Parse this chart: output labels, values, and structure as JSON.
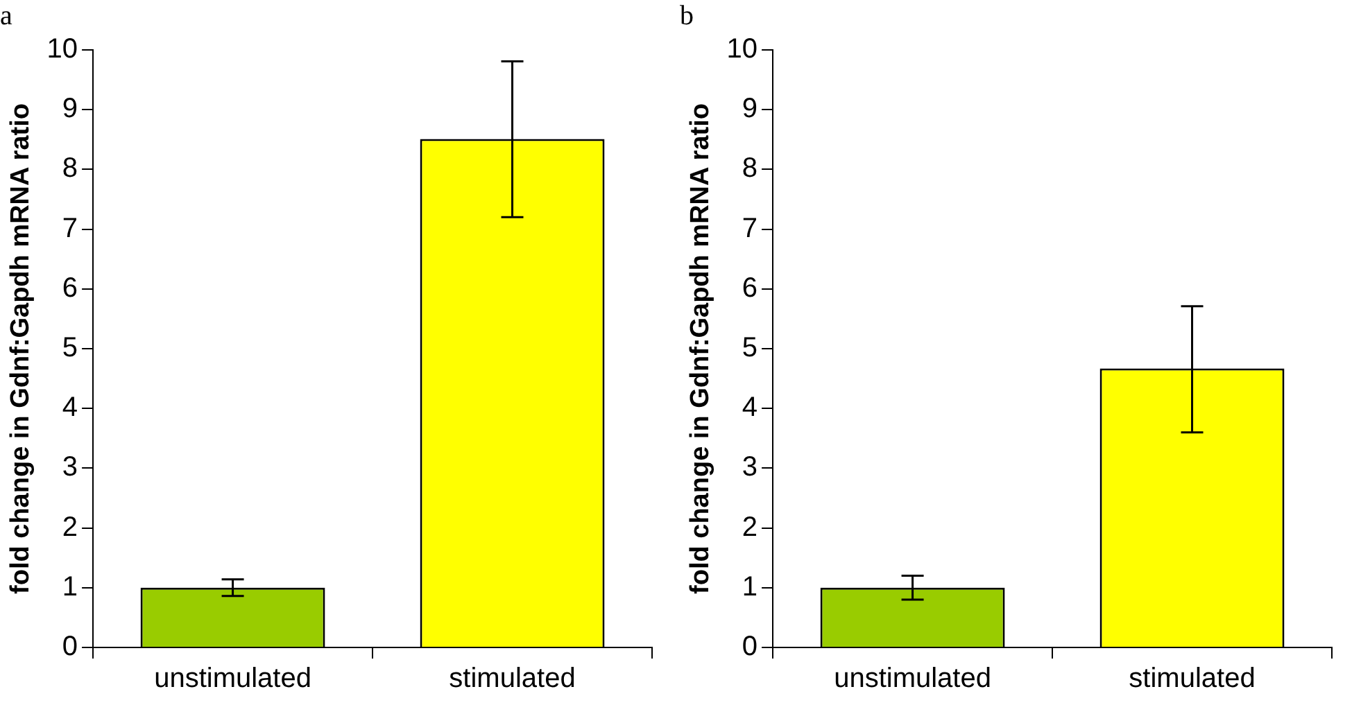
{
  "chart_data": [
    {
      "type": "bar",
      "title": "a",
      "ylabel": "fold change in Gdnf:Gapdh mRNA ratio",
      "categories": [
        "unstimulated",
        "stimulated"
      ],
      "values": [
        1.0,
        8.51
      ],
      "colors": [
        "#99cc00",
        "#ffff00"
      ],
      "errors": [
        [
          0.86,
          1.14
        ],
        [
          7.2,
          9.81
        ]
      ],
      "ylim": [
        0,
        10
      ],
      "yticks": [
        0,
        1,
        2,
        3,
        4,
        5,
        6,
        7,
        8,
        9,
        10
      ],
      "grid": false,
      "legend": false
    },
    {
      "type": "bar",
      "title": "b",
      "ylabel": "fold change in Gdnf:Gapdh mRNA ratio",
      "categories": [
        "unstimulated",
        "stimulated"
      ],
      "values": [
        1.0,
        4.67
      ],
      "colors": [
        "#99cc00",
        "#ffff00"
      ],
      "errors": [
        [
          0.8,
          1.2
        ],
        [
          3.6,
          5.71
        ]
      ],
      "ylim": [
        0,
        10
      ],
      "yticks": [
        0,
        1,
        2,
        3,
        4,
        5,
        6,
        7,
        8,
        9,
        10
      ],
      "grid": false,
      "legend": false
    }
  ]
}
